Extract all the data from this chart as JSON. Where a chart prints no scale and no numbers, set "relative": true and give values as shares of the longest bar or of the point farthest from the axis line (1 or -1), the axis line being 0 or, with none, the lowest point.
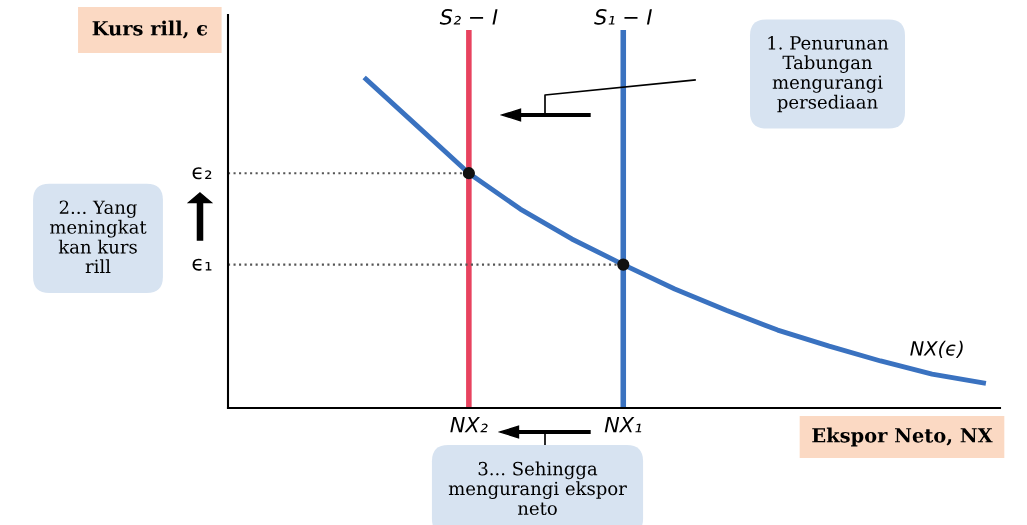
{
  "chart_data": {
    "type": "line",
    "relative": true,
    "ylabel": "Kurs rill, ϵ",
    "xlabel": "Ekspor Neto, NX",
    "categories": [
      null,
      null,
      null,
      "NX₂",
      null,
      null,
      "NX₁",
      null,
      null,
      null,
      null,
      null,
      null,
      null
    ],
    "grid": false,
    "series": [
      {
        "name": "NX(ϵ)",
        "color": "#3a72c0",
        "line_style": "solid",
        "marker": "none",
        "values": [
          null,
          1,
          0.857,
          0.714,
          0.605,
          0.514,
          0.436,
          0.362,
          0.297,
          0.237,
          0.188,
          0.143,
          0.103,
          0.076
        ]
      },
      {
        "type": "scatter",
        "color": "#111111",
        "marker": "circle",
        "x": [
          "NX₂",
          "NX₁"
        ],
        "values": [
          0.714,
          0.436
        ]
      }
    ],
    "ref_lines": [
      {
        "axis": "x",
        "value": "NX₂",
        "label": "S₂ − I",
        "color": "#e8435f",
        "line_style": "solid"
      },
      {
        "axis": "x",
        "value": "NX₁",
        "label": "S₁ − I",
        "color": "#3a72c0",
        "line_style": "solid"
      },
      {
        "axis": "y",
        "value": 0.714,
        "label": "ϵ₂",
        "color": "#555555",
        "line_style": "dotted"
      },
      {
        "axis": "y",
        "value": 0.436,
        "label": "ϵ₁",
        "color": "#555555",
        "line_style": "dotted"
      }
    ],
    "annotations": [
      "1. Penurunan\nTabungan\nmengurangi\npersediaan",
      "2... Yang\nmeningkat\nkan kurs\nrill",
      "3... Sehingga\nmengurangi ekspor\nneto"
    ]
  }
}
